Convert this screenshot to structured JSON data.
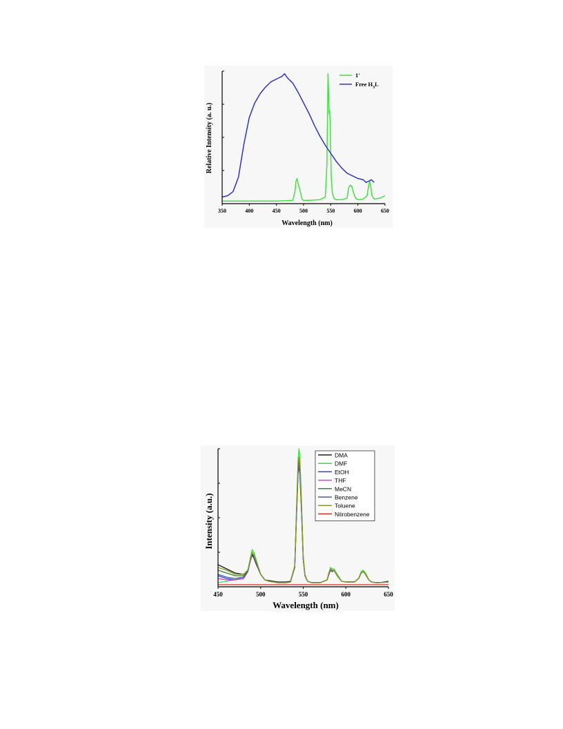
{
  "colors": {
    "figure_bg": "#f7f7f7",
    "axis": "#000000"
  },
  "chart_data": [
    {
      "type": "line",
      "title": "",
      "xlabel": "Wavelength (nm)",
      "ylabel": "Relative Intensity (a. u.)",
      "xlim": [
        350,
        650
      ],
      "ylim": [
        0,
        100
      ],
      "xticks": [
        "350",
        "400",
        "450",
        "500",
        "550",
        "600",
        "650"
      ],
      "legend": {
        "placement": "top-right",
        "entries": [
          {
            "label_main": "1'",
            "label_sub": "",
            "label_tail": ""
          },
          {
            "label_main": "Free H",
            "label_sub": "3",
            "label_tail": "L"
          }
        ]
      },
      "series": [
        {
          "name": "1'",
          "color": "#44e044",
          "x": [
            350,
            400,
            450,
            480,
            484,
            486,
            488,
            490,
            492,
            494,
            496,
            498,
            500,
            510,
            530,
            540,
            543,
            545,
            546,
            547,
            548,
            549,
            551,
            553,
            556,
            560,
            570,
            580,
            583,
            586,
            589,
            592,
            596,
            600,
            610,
            617,
            620,
            622,
            624,
            626,
            630,
            640,
            650
          ],
          "y": [
            2,
            2,
            2,
            2.5,
            9,
            17,
            19,
            15,
            12,
            9,
            5,
            3,
            2.5,
            2.5,
            3,
            5,
            30,
            98,
            85,
            68,
            70,
            60,
            20,
            8,
            4,
            3,
            3,
            4,
            12,
            14,
            13,
            8,
            4,
            3,
            3.5,
            6,
            14,
            17,
            12,
            6,
            3.5,
            4,
            6
          ]
        },
        {
          "name": "Free H3L",
          "color": "#2e33c8",
          "x": [
            350,
            360,
            370,
            380,
            390,
            400,
            410,
            420,
            430,
            440,
            450,
            460,
            465,
            470,
            480,
            490,
            500,
            510,
            520,
            530,
            540,
            550,
            560,
            570,
            580,
            590,
            600,
            610,
            615,
            620,
            625,
            630
          ],
          "y": [
            5,
            6,
            9,
            20,
            45,
            65,
            76,
            83,
            88,
            92,
            94,
            96,
            98,
            95,
            91,
            84,
            76,
            68,
            59,
            51,
            44,
            38,
            32,
            27,
            23,
            21,
            19,
            18,
            16,
            17,
            18,
            16
          ]
        }
      ]
    },
    {
      "type": "line",
      "title": "",
      "xlabel": "Wavelength (nm)",
      "ylabel": "Intensity (a.u.)",
      "xlim": [
        450,
        650
      ],
      "ylim": [
        0,
        100
      ],
      "xticks": [
        "450",
        "500",
        "550",
        "600",
        "650"
      ],
      "legend": {
        "placement": "top-right",
        "entries": [
          "DMA",
          "DMF",
          "EtOH",
          "THF",
          "MeCN",
          "Benzene",
          "Toluene",
          "Nitrobenzene"
        ]
      },
      "x": [
        450,
        460,
        470,
        480,
        485,
        488,
        490,
        492,
        495,
        498,
        500,
        505,
        510,
        520,
        530,
        535,
        540,
        542,
        544,
        545,
        546,
        548,
        550,
        552,
        555,
        560,
        570,
        578,
        580,
        582,
        584,
        586,
        588,
        590,
        595,
        600,
        605,
        610,
        615,
        618,
        620,
        622,
        624,
        627,
        630,
        635,
        640,
        650
      ],
      "series": [
        {
          "name": "DMA",
          "color": "#1a1a1a",
          "values": [
            16,
            13,
            10,
            9,
            12,
            19,
            23,
            21,
            16,
            12,
            9,
            5,
            4.5,
            3.5,
            3.5,
            4,
            15,
            50,
            83,
            87,
            82,
            55,
            20,
            8,
            4,
            3,
            3,
            5,
            9,
            12,
            11,
            12,
            10,
            8,
            4,
            3.5,
            3.5,
            3.5,
            6,
            10,
            11,
            10,
            8,
            5,
            3.5,
            3,
            3,
            4
          ]
        },
        {
          "name": "DMF",
          "color": "#3fdc3f",
          "values": [
            3,
            4,
            5,
            7,
            12,
            21,
            27,
            25,
            19,
            13,
            9,
            5,
            4,
            3,
            3,
            3.5,
            15,
            55,
            93,
            100,
            94,
            62,
            22,
            9,
            4,
            3,
            3,
            5,
            10,
            14,
            13,
            13,
            11,
            9,
            4,
            3.5,
            3.5,
            3.5,
            6,
            11,
            12,
            11,
            9,
            5,
            3.5,
            3,
            3,
            3.5
          ]
        },
        {
          "name": "EtOH",
          "color": "#2b3fd6",
          "values": [
            8,
            6,
            5,
            6,
            11,
            19,
            24,
            22,
            17,
            12,
            9,
            5,
            4,
            3,
            3,
            3.5,
            14,
            50,
            86,
            90,
            85,
            57,
            20,
            8,
            4,
            3,
            3,
            5,
            9,
            12,
            11,
            12,
            10,
            8,
            4,
            3.5,
            3.5,
            3.5,
            6,
            10,
            11,
            10,
            8,
            5,
            3.5,
            3,
            3,
            3.5
          ]
        },
        {
          "name": "THF",
          "color": "#d93ad9",
          "values": [
            6,
            5,
            5,
            6,
            11,
            19,
            24,
            22,
            17,
            12,
            9,
            5,
            4,
            3,
            3,
            3.5,
            14,
            50,
            85,
            89,
            84,
            56,
            20,
            8,
            4,
            3,
            3,
            5,
            9,
            12,
            11,
            12,
            10,
            8,
            4,
            3.5,
            3.5,
            3.5,
            6,
            10,
            11,
            10,
            8,
            5,
            3.5,
            3,
            3,
            3.5
          ]
        },
        {
          "name": "MeCN",
          "color": "#2f8a2f",
          "values": [
            12,
            10,
            8,
            8,
            12,
            20,
            25,
            23,
            18,
            13,
            9,
            5,
            4,
            3,
            3,
            3.5,
            15,
            52,
            88,
            92,
            87,
            58,
            21,
            8,
            4,
            3,
            3,
            5,
            10,
            13,
            12,
            12,
            10,
            8,
            4,
            3.5,
            3.5,
            3.5,
            6,
            10,
            11,
            10,
            8,
            5,
            3.5,
            3,
            3,
            3.5
          ]
        },
        {
          "name": "Benzene",
          "color": "#4a56a8",
          "values": [
            9,
            7,
            6,
            7,
            11,
            19,
            24,
            22,
            17,
            12,
            9,
            5,
            4,
            3,
            3,
            3.5,
            14,
            49,
            84,
            88,
            83,
            55,
            20,
            8,
            4,
            3,
            3,
            5,
            9,
            12,
            11,
            12,
            10,
            8,
            4,
            3.5,
            3.5,
            3.5,
            6,
            10,
            11,
            10,
            8,
            5,
            3.5,
            3,
            3,
            3.5
          ]
        },
        {
          "name": "Toluene",
          "color": "#8a9a1e",
          "values": [
            14,
            12,
            9,
            9,
            12,
            20,
            25,
            23,
            18,
            13,
            9,
            5,
            4,
            3,
            3,
            3.5,
            15,
            52,
            90,
            94,
            89,
            59,
            21,
            8,
            4,
            3,
            3,
            5,
            10,
            13,
            12,
            12,
            10,
            8,
            4,
            3.5,
            3.5,
            3.5,
            6,
            10,
            11,
            10,
            8,
            5,
            3.5,
            3,
            3,
            3.5
          ]
        },
        {
          "name": "Nitrobenzene",
          "color": "#e02a1e",
          "values": [
            1.5,
            1.5,
            1.5,
            1.5,
            1.5,
            1.5,
            1.5,
            1.5,
            1.5,
            1.5,
            1.5,
            1.5,
            1.5,
            1.5,
            1.5,
            1.5,
            1.5,
            1.5,
            1.5,
            1.5,
            1.5,
            1.5,
            1.5,
            1.5,
            1.5,
            1.5,
            1.5,
            1.5,
            1.5,
            1.5,
            1.5,
            1.5,
            1.5,
            1.5,
            1.5,
            1.5,
            1.5,
            1.5,
            1.5,
            1.5,
            1.5,
            1.5,
            1.5,
            1.5,
            1.5,
            1.5,
            1.5,
            1.5
          ]
        }
      ]
    }
  ]
}
